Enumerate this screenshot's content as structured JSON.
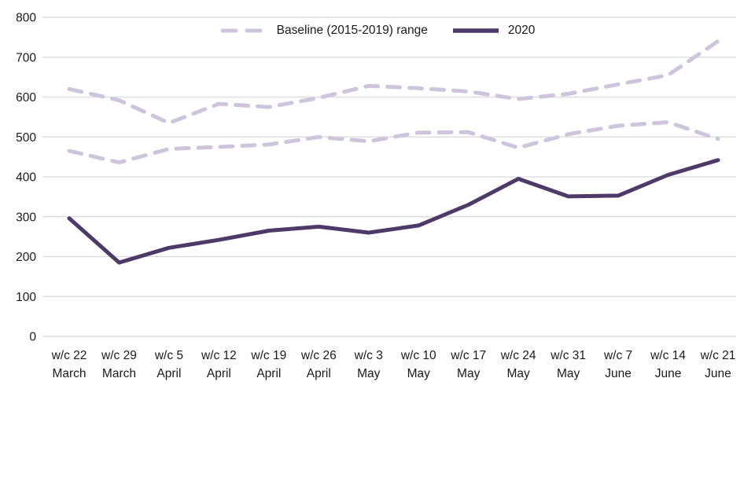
{
  "chart_data": {
    "type": "line",
    "title": "",
    "xlabel": "",
    "ylabel": "",
    "ylim": [
      0,
      800
    ],
    "ytick_step": 100,
    "yticks": [
      0,
      100,
      200,
      300,
      400,
      500,
      600,
      700,
      800
    ],
    "grid": "horizontal",
    "gridline_color": "#d9d9d9",
    "legend_position": "top-center",
    "categories_line1": [
      "w/c 22",
      "w/c 29",
      "w/c 5",
      "w/c 12",
      "w/c 19",
      "w/c 26",
      "w/c 3",
      "w/c 10",
      "w/c 17",
      "w/c 24",
      "w/c 31",
      "w/c 7",
      "w/c 14",
      "w/c 21"
    ],
    "categories_line2": [
      "March",
      "March",
      "April",
      "April",
      "April",
      "April",
      "May",
      "May",
      "May",
      "May",
      "May",
      "June",
      "June",
      "June"
    ],
    "series": [
      {
        "name": "Baseline (2015-2019) range",
        "role": "baseline-upper",
        "style": "dashed",
        "color": "#cec5dc",
        "values": [
          620,
          592,
          535,
          583,
          575,
          598,
          628,
          622,
          614,
          595,
          608,
          632,
          655,
          740
        ]
      },
      {
        "name": "Baseline (2015-2019) range",
        "role": "baseline-lower",
        "style": "dashed",
        "color": "#cec5dc",
        "values": [
          465,
          436,
          470,
          475,
          481,
          500,
          489,
          511,
          512,
          473,
          507,
          528,
          537,
          495
        ]
      },
      {
        "name": "2020",
        "role": "series-2020",
        "style": "solid",
        "color": "#4d3a68",
        "values": [
          296,
          185,
          222,
          242,
          265,
          275,
          260,
          278,
          330,
          395,
          351,
          353,
          405,
          442
        ]
      }
    ]
  },
  "legend": {
    "items": [
      {
        "label": "Baseline (2015-2019) range",
        "color": "#cec5dc",
        "style": "dashed"
      },
      {
        "label": "2020",
        "color": "#4d3a68",
        "style": "solid"
      }
    ]
  },
  "colors": {
    "baseline": "#cec5dc",
    "series2020": "#4d3a68",
    "gridline": "#d9d9d9",
    "text": "#1a1a1a",
    "background": "#ffffff"
  }
}
